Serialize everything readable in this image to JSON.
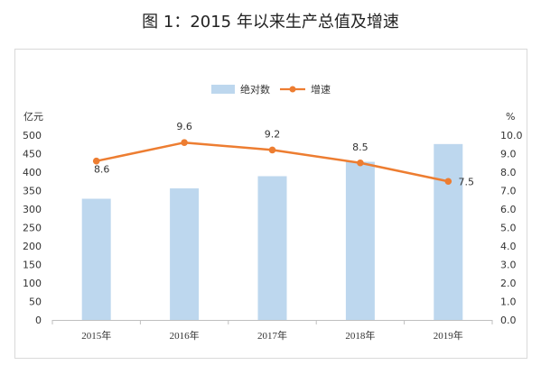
{
  "title": "图 1：2015 年以来生产总值及增速",
  "chart_data": {
    "type": "bar+line",
    "categories": [
      "2015年",
      "2016年",
      "2017年",
      "2018年",
      "2019年"
    ],
    "series": [
      {
        "name": "绝对数",
        "type": "bar",
        "axis": "left",
        "color": "#bdd7ee",
        "values": [
          328,
          356,
          389,
          428,
          476
        ]
      },
      {
        "name": "增速",
        "type": "line",
        "axis": "right",
        "color": "#ed7d31",
        "values": [
          8.6,
          9.6,
          9.2,
          8.5,
          7.5
        ]
      }
    ],
    "data_labels": [
      "8.6",
      "9.6",
      "9.2",
      "8.5",
      "7.5"
    ],
    "ylabel_left": "亿元",
    "ylabel_right": "%",
    "ylim_left": [
      0,
      500
    ],
    "yticks_left": [
      "0",
      "50",
      "100",
      "150",
      "200",
      "250",
      "300",
      "350",
      "400",
      "450",
      "500"
    ],
    "ylim_right": [
      0,
      10
    ],
    "yticks_right": [
      "0.0",
      "1.0",
      "2.0",
      "3.0",
      "4.0",
      "5.0",
      "6.0",
      "7.0",
      "8.0",
      "9.0",
      "10.0"
    ],
    "legend_position": "top",
    "grid": false
  }
}
